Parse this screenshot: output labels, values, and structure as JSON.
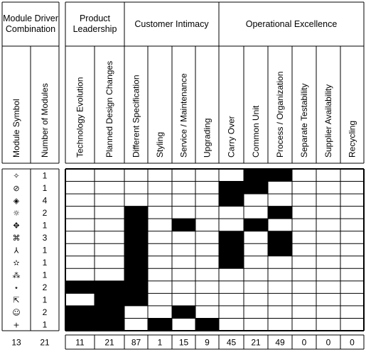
{
  "header": {
    "driver_title": "Module Driver Combination",
    "groups": [
      "Product Leadership",
      "Customer Intimacy",
      "Operational Excellence"
    ],
    "left_columns": [
      "Module Symbol",
      "Number of Modules"
    ],
    "columns": [
      "Technology Evolution",
      "Planned Design Changes",
      "Different Specification",
      "Styling",
      "Service / Maintenance",
      "Upgrading",
      "Carry Over",
      "Common Unit",
      "Process / Organization",
      "Separate Testability",
      "Supplier Availability",
      "Recycling"
    ]
  },
  "table": {
    "rows": [
      {
        "symbol": "✧",
        "count": 1,
        "cells": [
          0,
          0,
          0,
          0,
          0,
          0,
          0,
          1,
          1,
          0,
          0,
          0
        ]
      },
      {
        "symbol": "⊘",
        "count": 1,
        "cells": [
          0,
          0,
          0,
          0,
          0,
          0,
          1,
          1,
          0,
          0,
          0,
          0
        ]
      },
      {
        "symbol": "◈",
        "count": 4,
        "cells": [
          0,
          0,
          0,
          0,
          0,
          0,
          1,
          0,
          0,
          0,
          0,
          0
        ]
      },
      {
        "symbol": "☼",
        "count": 2,
        "cells": [
          0,
          0,
          1,
          0,
          0,
          0,
          0,
          0,
          1,
          0,
          0,
          0
        ]
      },
      {
        "symbol": "✥",
        "count": 1,
        "cells": [
          0,
          0,
          1,
          0,
          1,
          0,
          0,
          1,
          0,
          0,
          0,
          0
        ]
      },
      {
        "symbol": "⌘",
        "count": 3,
        "cells": [
          0,
          0,
          1,
          0,
          0,
          0,
          1,
          0,
          1,
          0,
          0,
          0
        ]
      },
      {
        "symbol": "⅄",
        "count": 1,
        "cells": [
          0,
          0,
          1,
          0,
          0,
          0,
          1,
          0,
          1,
          0,
          0,
          0
        ]
      },
      {
        "symbol": "✫",
        "count": 1,
        "cells": [
          0,
          0,
          1,
          0,
          0,
          0,
          1,
          0,
          0,
          0,
          0,
          0
        ]
      },
      {
        "symbol": "⁂",
        "count": 1,
        "cells": [
          0,
          0,
          1,
          0,
          0,
          0,
          0,
          0,
          0,
          0,
          0,
          0
        ]
      },
      {
        "symbol": "⋆",
        "count": 2,
        "cells": [
          1,
          1,
          1,
          0,
          0,
          0,
          0,
          0,
          0,
          0,
          0,
          0
        ]
      },
      {
        "symbol": "⇱",
        "count": 1,
        "cells": [
          0,
          1,
          1,
          0,
          0,
          0,
          0,
          0,
          0,
          0,
          0,
          0
        ]
      },
      {
        "symbol": "☺",
        "count": 2,
        "cells": [
          1,
          1,
          0,
          0,
          1,
          0,
          0,
          0,
          0,
          0,
          0,
          0
        ]
      },
      {
        "symbol": "+",
        "count": 1,
        "cells": [
          1,
          1,
          0,
          1,
          0,
          1,
          0,
          0,
          0,
          0,
          0,
          0
        ]
      }
    ],
    "totals": {
      "symbols": 13,
      "modules": 21,
      "columns": [
        11,
        21,
        87,
        1,
        15,
        9,
        45,
        21,
        49,
        0,
        0,
        0
      ]
    }
  }
}
